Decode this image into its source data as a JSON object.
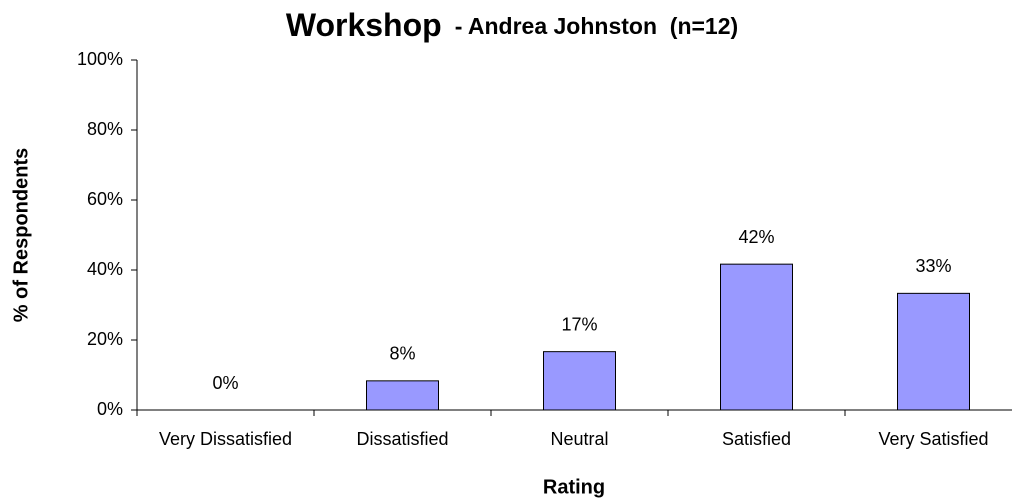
{
  "chart_data": {
    "type": "bar",
    "title": "Workshop",
    "subtitle": "- Andrea Johnston  (n=12)",
    "x_label": "Rating",
    "y_label": "% of Respondents",
    "categories": [
      "Very Dissatisfied",
      "Dissatisfied",
      "Neutral",
      "Satisfied",
      "Very Satisfied"
    ],
    "values": [
      0,
      8.33,
      16.67,
      41.67,
      33.33
    ],
    "value_labels": [
      "0%",
      "8%",
      "17%",
      "42%",
      "33%"
    ],
    "color": "#9999ff",
    "ylim": [
      0,
      100
    ],
    "yticks": [
      {
        "value": 0,
        "label": "0%"
      },
      {
        "value": 20,
        "label": "20%"
      },
      {
        "value": 40,
        "label": "40%"
      },
      {
        "value": 60,
        "label": "60%"
      },
      {
        "value": 80,
        "label": "80%"
      },
      {
        "value": 100,
        "label": "100%"
      }
    ],
    "grid": false
  }
}
